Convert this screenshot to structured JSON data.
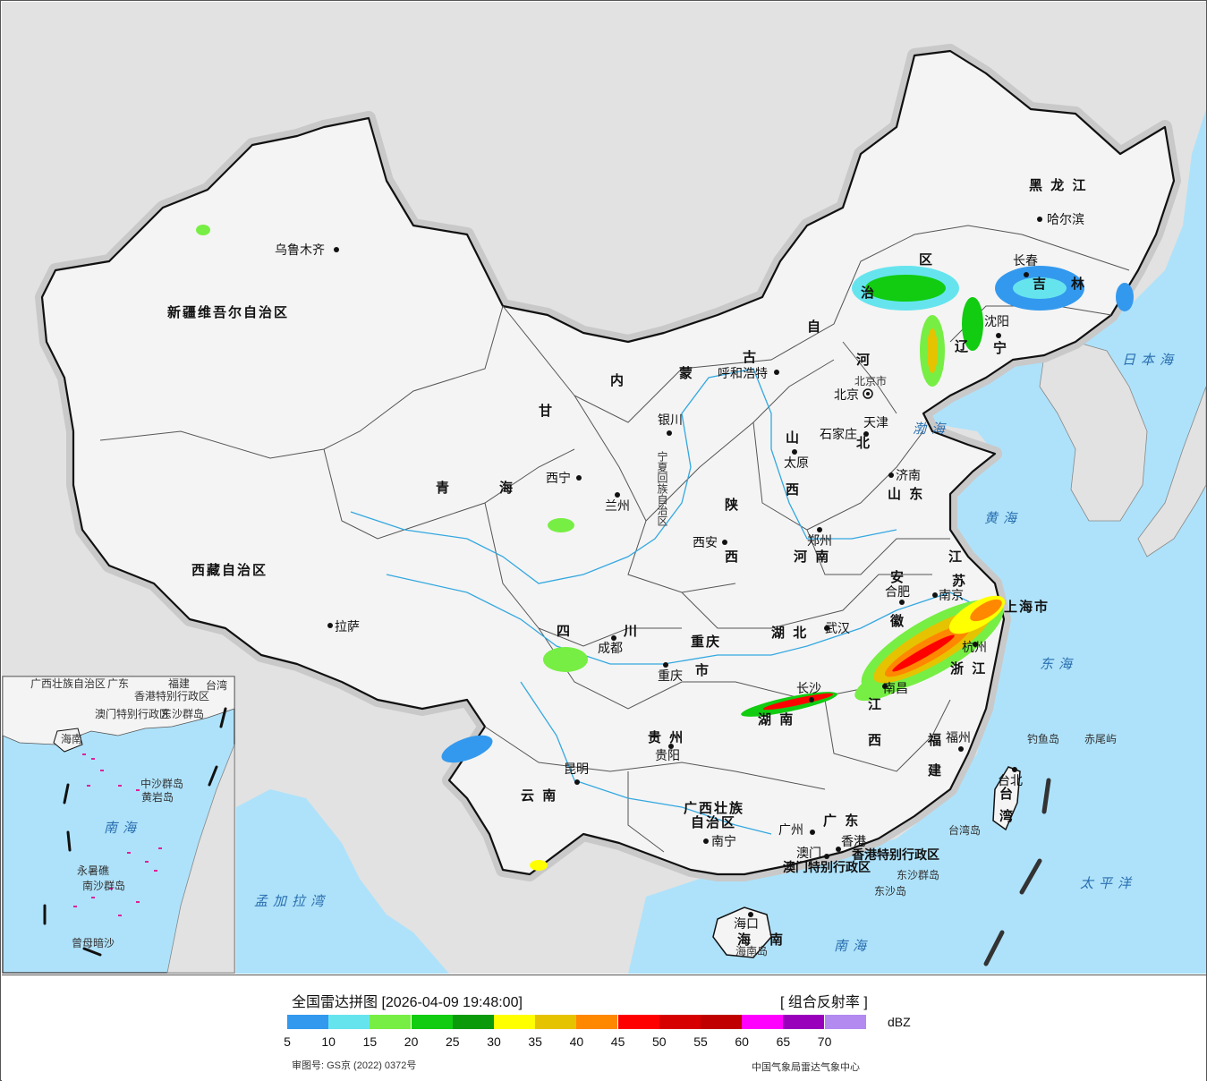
{
  "map": {
    "provinces": [
      {
        "name": "新疆维吾尔自治区",
        "id": "xinjiang"
      },
      {
        "name": "西藏自治区",
        "id": "xizang"
      },
      {
        "name": "青",
        "id": "qinghai1"
      },
      {
        "name": "海",
        "id": "qinghai2"
      },
      {
        "name": "甘",
        "id": "gansu"
      },
      {
        "name": "内",
        "id": "nmg1"
      },
      {
        "name": "蒙",
        "id": "nmg2"
      },
      {
        "name": "古",
        "id": "nmg3"
      },
      {
        "name": "自",
        "id": "nmg4"
      },
      {
        "name": "治",
        "id": "nmg5"
      },
      {
        "name": "区",
        "id": "nmg6"
      },
      {
        "name": "黑 龙 江",
        "id": "heilongjiang"
      },
      {
        "name": "吉",
        "id": "jilin1"
      },
      {
        "name": "林",
        "id": "jilin2"
      },
      {
        "name": "辽",
        "id": "liaoning1"
      },
      {
        "name": "宁",
        "id": "liaoning2"
      },
      {
        "name": "河",
        "id": "hebei1"
      },
      {
        "name": "北",
        "id": "hebei2"
      },
      {
        "name": "山",
        "id": "shanxi1"
      },
      {
        "name": "西",
        "id": "shanxi2"
      },
      {
        "name": "山 东",
        "id": "shandong"
      },
      {
        "name": "陕",
        "id": "shaanxi1"
      },
      {
        "name": "西",
        "id": "shaanxi2"
      },
      {
        "name": "河 南",
        "id": "henan"
      },
      {
        "name": "安",
        "id": "anhui1"
      },
      {
        "name": "徽",
        "id": "anhui2"
      },
      {
        "name": "江",
        "id": "jiangsu1"
      },
      {
        "name": "苏",
        "id": "jiangsu2"
      },
      {
        "name": "上海市",
        "id": "shanghai"
      },
      {
        "name": "浙 江",
        "id": "zhejiang"
      },
      {
        "name": "四",
        "id": "sichuan1"
      },
      {
        "name": "川",
        "id": "sichuan2"
      },
      {
        "name": "重庆",
        "id": "chongqing1"
      },
      {
        "name": "市",
        "id": "chongqing2"
      },
      {
        "name": "湖 北",
        "id": "hubei"
      },
      {
        "name": "湖 南",
        "id": "hunan"
      },
      {
        "name": "江",
        "id": "jiangxi1"
      },
      {
        "name": "西",
        "id": "jiangxi2"
      },
      {
        "name": "福",
        "id": "fujian1"
      },
      {
        "name": "建",
        "id": "fujian2"
      },
      {
        "name": "贵 州",
        "id": "guizhou"
      },
      {
        "name": "云 南",
        "id": "yunnan"
      },
      {
        "name": "广西壮族",
        "id": "guangxi1"
      },
      {
        "name": "自治区",
        "id": "guangxi2"
      },
      {
        "name": "广 东",
        "id": "guangdong"
      },
      {
        "name": "台",
        "id": "taiwan1"
      },
      {
        "name": "湾",
        "id": "taiwan2"
      },
      {
        "name": "海",
        "id": "hainan1"
      },
      {
        "name": "南",
        "id": "hainan2"
      },
      {
        "name": "宁夏回族自治区",
        "id": "ningxia"
      },
      {
        "name": "天津",
        "id": "tianjin"
      },
      {
        "name": "北京市",
        "id": "beijingshi"
      },
      {
        "name": "香港特别行政区",
        "id": "hk"
      },
      {
        "name": "澳门特别行政区",
        "id": "macau"
      }
    ],
    "cities": [
      {
        "name": "乌鲁木齐",
        "id": "urumqi"
      },
      {
        "name": "哈尔滨",
        "id": "harbin"
      },
      {
        "name": "长春",
        "id": "changchun"
      },
      {
        "name": "沈阳",
        "id": "shenyang"
      },
      {
        "name": "呼和浩特",
        "id": "hohhot"
      },
      {
        "name": "北京",
        "id": "beijing"
      },
      {
        "name": "石家庄",
        "id": "shijiazhuang"
      },
      {
        "name": "太原",
        "id": "taiyuan"
      },
      {
        "name": "济南",
        "id": "jinan"
      },
      {
        "name": "银川",
        "id": "yinchuan"
      },
      {
        "name": "西宁",
        "id": "xining"
      },
      {
        "name": "兰州",
        "id": "lanzhou"
      },
      {
        "name": "西安",
        "id": "xian"
      },
      {
        "name": "郑州",
        "id": "zhengzhou"
      },
      {
        "name": "合肥",
        "id": "hefei"
      },
      {
        "name": "南京",
        "id": "nanjing"
      },
      {
        "name": "杭州",
        "id": "hangzhou"
      },
      {
        "name": "武汉",
        "id": "wuhan"
      },
      {
        "name": "成都",
        "id": "chengdu"
      },
      {
        "name": "重庆",
        "id": "chongqingcity"
      },
      {
        "name": "拉萨",
        "id": "lhasa"
      },
      {
        "name": "长沙",
        "id": "changsha"
      },
      {
        "name": "南昌",
        "id": "nanchang"
      },
      {
        "name": "贵阳",
        "id": "guiyang"
      },
      {
        "name": "昆明",
        "id": "kunming"
      },
      {
        "name": "福州",
        "id": "fuzhou"
      },
      {
        "name": "台北",
        "id": "taipei"
      },
      {
        "name": "南宁",
        "id": "nanning"
      },
      {
        "name": "广州",
        "id": "guangzhou"
      },
      {
        "name": "澳门",
        "id": "macaocity"
      },
      {
        "name": "香港",
        "id": "hkcity"
      },
      {
        "name": "海口",
        "id": "haikou"
      }
    ],
    "seas": [
      {
        "name": "日本海",
        "id": "japansea"
      },
      {
        "name": "渤海",
        "id": "bohai"
      },
      {
        "name": "黄海",
        "id": "yellowsea"
      },
      {
        "name": "东海",
        "id": "eastsea"
      },
      {
        "name": "太平洋",
        "id": "pacific"
      },
      {
        "name": "南海",
        "id": "southsea"
      },
      {
        "name": "孟加拉湾",
        "id": "bengal"
      }
    ],
    "islands": [
      {
        "name": "钓鱼岛",
        "id": "diaoyu"
      },
      {
        "name": "赤尾屿",
        "id": "chiwei"
      },
      {
        "name": "台湾岛",
        "id": "taiwanisland"
      },
      {
        "name": "东沙群岛",
        "id": "dongshagroup"
      },
      {
        "name": "东沙岛",
        "id": "dongshaisland"
      },
      {
        "name": "海南岛",
        "id": "hainanisland"
      }
    ],
    "inset": {
      "labels": [
        "广西壮族自治区",
        "广东",
        "福建",
        "台湾",
        "澳门特别行政区",
        "香港特别行政区",
        "东沙群岛",
        "海南",
        "中沙群岛",
        "南海",
        "永暑礁",
        "南沙群岛",
        "曾母暗沙",
        "黄岩岛"
      ]
    }
  },
  "legend": {
    "title": "全国雷达拼图 [2026-04-09 19:48:00]",
    "product": "[ 组合反射率 ]",
    "unit": "dBZ",
    "ticks": [
      "5",
      "10",
      "15",
      "20",
      "25",
      "30",
      "35",
      "40",
      "45",
      "50",
      "55",
      "60",
      "65",
      "70"
    ],
    "colors": [
      "#3399ee",
      "#66e4ee",
      "#77ee44",
      "#11cc11",
      "#0a9a0a",
      "#ffff00",
      "#e6c300",
      "#ff8800",
      "#ff0000",
      "#d60000",
      "#c00000",
      "#ff00ff",
      "#9900bb",
      "#b28af0"
    ],
    "approval": "审图号: GS京 (2022) 0372号",
    "source": "中国气象局雷达气象中心"
  }
}
